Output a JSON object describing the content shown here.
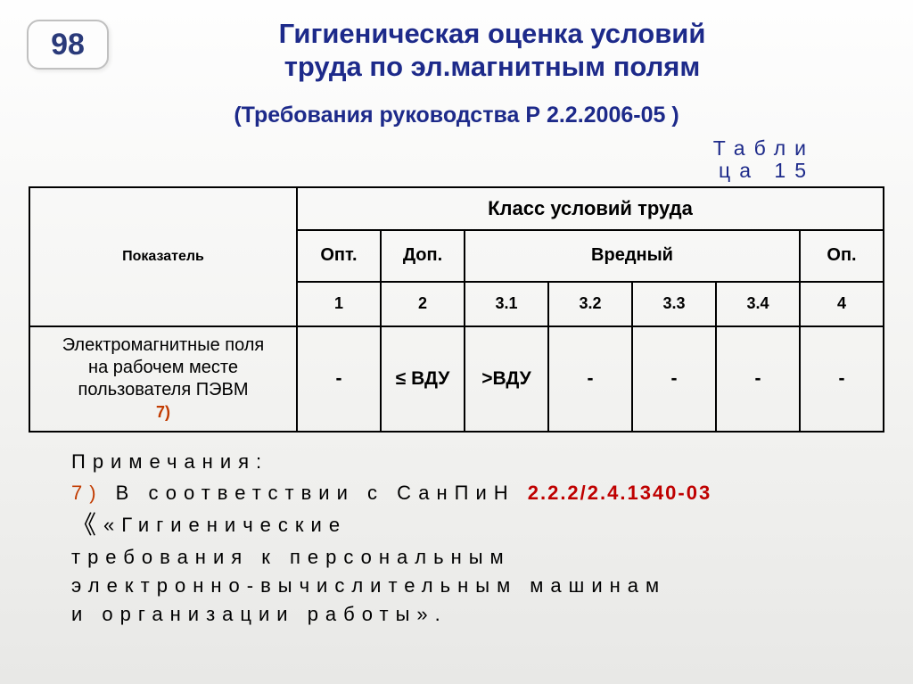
{
  "slide_number": "98",
  "title_line1": "Гигиеническая оценка условий",
  "title_line2": "труда по эл.магнитным полям",
  "subtitle": "(Требования руководства Р 2.2.2006-05 )",
  "table_caption_l1": "Табли",
  "table_caption_l2": "ца 15",
  "table": {
    "col_indicator": "Показатель",
    "col_class_group": "Класс условий труда",
    "cols_group2": {
      "opt": "Опт.",
      "dop": "Доп.",
      "vred": "Вредный",
      "op": "Оп."
    },
    "cols_group3": {
      "c1": "1",
      "c2": "2",
      "c31": "3.1",
      "c32": "3.2",
      "c33": "3.3",
      "c34": "3.4",
      "c4": "4"
    },
    "row": {
      "label_l1": "Электромагнитные поля",
      "label_l2": "на рабочем месте",
      "label_l3": "пользователя ПЭВМ",
      "footnote_mark": "7)",
      "cells": {
        "c1": "-",
        "c2": "≤ ВДУ",
        "c31": ">ВДУ",
        "c32": "-",
        "c33": "-",
        "c34": "-",
        "c4": "-"
      }
    }
  },
  "notes": {
    "label": "Примечания:",
    "n7_num": "7)",
    "n7_pre": " В соответствии с СанПиН ",
    "n7_ref": "2.2.2/2.4.1340-03",
    "n7_body_l1": "«Гигиенические",
    "n7_body_l2": "требования к персональным",
    "n7_body_l3": "электронно-вычислительным машинам",
    "n7_body_l4": "и организации работы»."
  },
  "colors": {
    "accent": "#1d2a8a",
    "footnote": "#c23b00",
    "ref": "#bf0000",
    "border": "#000000",
    "bg_top": "#fefefe",
    "bg_bottom": "#e8e8e6"
  }
}
